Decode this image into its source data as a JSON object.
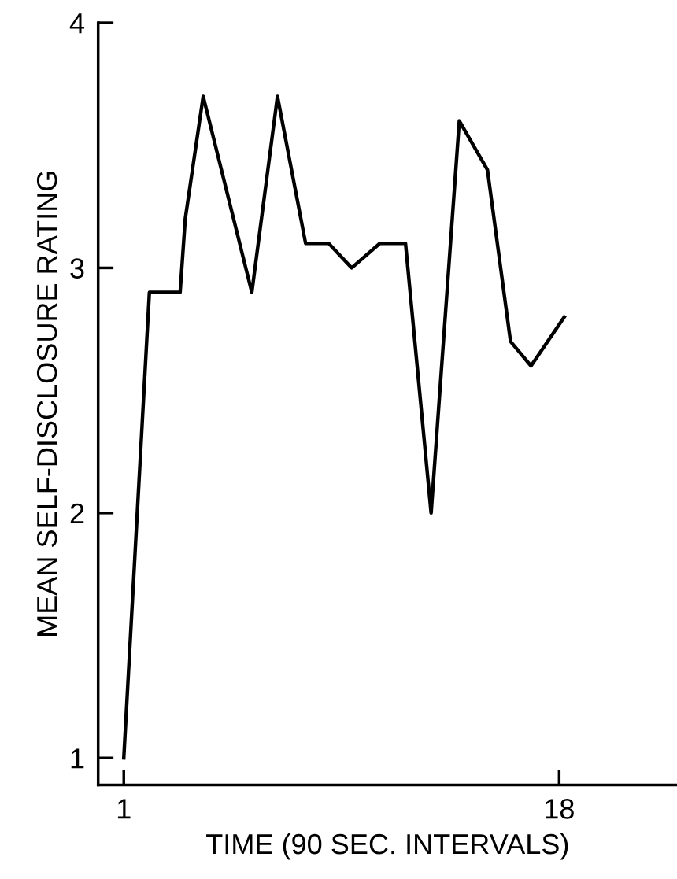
{
  "chart_data": {
    "type": "line",
    "xlabel": "TIME (90 SEC. INTERVALS)",
    "ylabel": "MEAN SELF-DISCLOSURE RATING",
    "x": [
      1,
      2,
      3.2,
      3.4,
      4.1,
      6,
      7,
      8.1,
      9,
      9.9,
      11,
      12,
      13,
      14.1,
      15.2,
      16.1,
      16.9,
      18.2
    ],
    "series": [
      {
        "color": "#000000",
        "values": [
          1.0,
          2.9,
          2.9,
          3.2,
          3.7,
          2.9,
          3.7,
          3.1,
          3.1,
          3.0,
          3.1,
          3.1,
          2.0,
          3.6,
          3.4,
          2.7,
          2.6,
          2.8
        ]
      }
    ],
    "xlim": [
      0,
      22.6
    ],
    "ylim": [
      0.89,
      4
    ],
    "xticks": [
      1,
      18
    ],
    "yticks": [
      1,
      2,
      3,
      4
    ],
    "grid": false,
    "legend": false,
    "marker": "none",
    "line_style": "solid"
  }
}
